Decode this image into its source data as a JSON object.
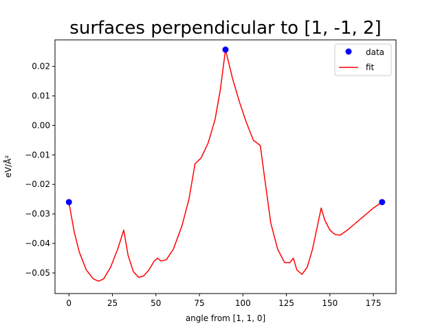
{
  "chart_data": {
    "type": "line",
    "title": "surfaces perpendicular to [1, -1, 2]",
    "xlabel": "angle from [1, 1, 0]",
    "ylabel": "eV/Å²",
    "xlim": [
      -8,
      188
    ],
    "ylim": [
      -0.057,
      0.029
    ],
    "xticks": [
      0,
      25,
      50,
      75,
      100,
      125,
      150,
      175
    ],
    "yticks": [
      -0.05,
      -0.04,
      -0.03,
      -0.02,
      -0.01,
      0.0,
      0.01,
      0.02
    ],
    "ytick_labels": [
      "−0.05",
      "−0.04",
      "−0.03",
      "−0.02",
      "−0.01",
      "0.00",
      "0.01",
      "0.02"
    ],
    "legend": {
      "position": "top-right"
    },
    "grid": false,
    "series": [
      {
        "name": "data",
        "kind": "scatter",
        "color": "#0000ff",
        "x": [
          0,
          90,
          180
        ],
        "y": [
          -0.026,
          0.0257,
          -0.026
        ]
      },
      {
        "name": "fit",
        "kind": "line",
        "color": "#ff0000",
        "x": [
          0,
          3,
          6,
          10,
          14,
          17,
          20,
          24,
          28,
          31.5,
          34,
          37,
          40,
          43,
          46,
          49,
          51,
          53,
          56,
          60,
          65,
          69,
          72.5,
          76,
          80,
          84,
          87,
          90,
          94,
          98,
          102,
          106,
          110,
          113,
          116,
          120,
          124,
          127,
          129,
          131,
          134,
          137,
          140,
          145,
          147,
          150,
          153,
          156,
          160,
          165,
          170,
          175,
          180
        ],
        "y": [
          -0.026,
          -0.036,
          -0.043,
          -0.049,
          -0.052,
          -0.0528,
          -0.052,
          -0.048,
          -0.042,
          -0.0355,
          -0.044,
          -0.0495,
          -0.0515,
          -0.051,
          -0.049,
          -0.046,
          -0.045,
          -0.046,
          -0.0455,
          -0.042,
          -0.034,
          -0.025,
          -0.013,
          -0.011,
          -0.006,
          0.002,
          0.012,
          0.0257,
          0.016,
          0.008,
          0.001,
          -0.005,
          -0.0068,
          -0.02,
          -0.033,
          -0.042,
          -0.0465,
          -0.0465,
          -0.045,
          -0.049,
          -0.0505,
          -0.048,
          -0.042,
          -0.028,
          -0.032,
          -0.0355,
          -0.037,
          -0.0372,
          -0.0355,
          -0.033,
          -0.0305,
          -0.028,
          -0.026
        ]
      }
    ]
  }
}
